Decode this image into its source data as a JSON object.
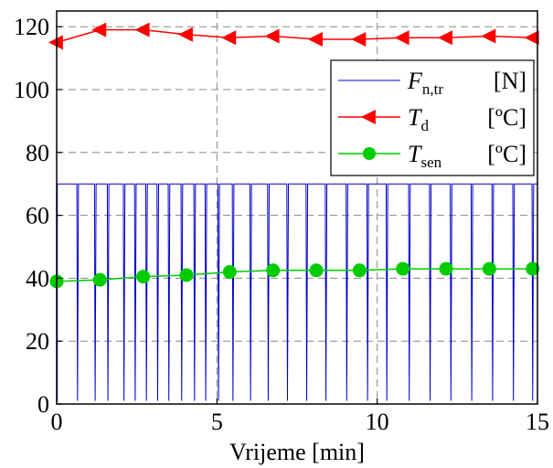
{
  "chart_data": {
    "type": "line",
    "xlabel": "Vrijeme [min]",
    "ylabel": "",
    "xlim": [
      0,
      15
    ],
    "ylim": [
      0,
      125
    ],
    "x_ticks": [
      0,
      5,
      10,
      15
    ],
    "y_ticks": [
      0,
      20,
      40,
      60,
      80,
      100,
      120
    ],
    "grid": true,
    "legend_position": "top-right",
    "series": [
      {
        "name_symbol": "F",
        "name_sub": "n,tr",
        "name_unit": "[N]",
        "color": "#0000cc",
        "marker": "none",
        "baseline": 70,
        "dip_min": 1,
        "dip_x": [
          0.65,
          1.2,
          1.6,
          2.1,
          2.45,
          2.8,
          3.15,
          3.5,
          3.9,
          4.3,
          4.65,
          5.05,
          5.5,
          6.05,
          6.6,
          7.2,
          7.8,
          8.4,
          9.05,
          9.7,
          10.3,
          11.0,
          11.65,
          12.3,
          12.95,
          13.6,
          14.25,
          14.85
        ]
      },
      {
        "name_symbol": "T",
        "name_sub": "d",
        "name_unit": "[ºC]",
        "color": "#ff0000",
        "marker": "triangle-left",
        "x": [
          0.0,
          1.35,
          2.7,
          4.05,
          5.4,
          6.75,
          8.1,
          9.45,
          10.8,
          12.15,
          13.5,
          14.85
        ],
        "y": [
          115,
          119,
          119,
          117.5,
          116.5,
          117,
          116,
          116,
          116.5,
          116.5,
          117,
          116.5
        ]
      },
      {
        "name_symbol": "T",
        "name_sub": "sen",
        "name_unit": "[ºC]",
        "color": "#00cc00",
        "marker": "circle",
        "x": [
          0.0,
          1.35,
          2.7,
          4.05,
          5.4,
          6.75,
          8.1,
          9.45,
          10.8,
          12.15,
          13.5,
          14.85
        ],
        "y": [
          39,
          39.5,
          40.5,
          41,
          42,
          42.5,
          42.5,
          42.5,
          43,
          43,
          43,
          43
        ]
      }
    ]
  }
}
